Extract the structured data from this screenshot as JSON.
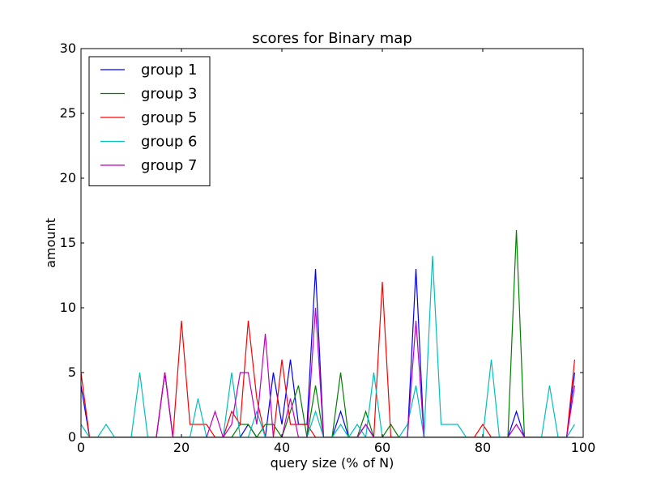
{
  "chart_data": {
    "type": "line",
    "title": "scores for Binary map",
    "xlabel": "query size (% of N)",
    "ylabel": "amount",
    "xlim": [
      0,
      100
    ],
    "ylim": [
      0,
      30
    ],
    "xticks": [
      0,
      20,
      40,
      60,
      80,
      100
    ],
    "yticks": [
      0,
      5,
      10,
      15,
      20,
      25,
      30
    ],
    "grid": false,
    "legend_position": "top-left",
    "series": [
      {
        "name": "group 1",
        "color": "#0000ff",
        "x": [
          0,
          1.7,
          3.3,
          5,
          6.7,
          8.3,
          10,
          11.7,
          13.3,
          15,
          16.7,
          18.3,
          20,
          21.7,
          23.3,
          25,
          26.7,
          28.3,
          30,
          31.7,
          33.3,
          35,
          36.7,
          38.3,
          40,
          41.7,
          43.3,
          45,
          46.7,
          48.3,
          50,
          51.7,
          53.3,
          55,
          56.7,
          58.3,
          60,
          61.7,
          63.3,
          65,
          66.7,
          68.3,
          70,
          71.7,
          73.3,
          75,
          76.7,
          78.3,
          80,
          81.7,
          83.3,
          85,
          86.7,
          88.3,
          90,
          91.7,
          93.3,
          95,
          96.7,
          98.3
        ],
        "values": [
          4,
          0,
          0,
          0,
          0,
          0,
          0,
          0,
          0,
          0,
          5,
          0,
          0,
          0,
          0,
          0,
          0,
          0,
          0,
          0,
          1,
          0,
          0,
          5,
          1,
          6,
          1,
          1,
          13,
          0,
          0,
          2,
          0,
          0,
          1,
          0,
          0,
          0,
          0,
          0,
          13,
          0,
          0,
          0,
          0,
          0,
          0,
          0,
          0,
          0,
          0,
          0,
          2,
          0,
          0,
          0,
          0,
          0,
          0,
          5
        ]
      },
      {
        "name": "group 3",
        "color": "#008000",
        "x": [
          0,
          1.7,
          3.3,
          5,
          6.7,
          8.3,
          10,
          11.7,
          13.3,
          15,
          16.7,
          18.3,
          20,
          21.7,
          23.3,
          25,
          26.7,
          28.3,
          30,
          31.7,
          33.3,
          35,
          36.7,
          38.3,
          40,
          41.7,
          43.3,
          45,
          46.7,
          48.3,
          50,
          51.7,
          53.3,
          55,
          56.7,
          58.3,
          60,
          61.7,
          63.3,
          65,
          66.7,
          68.3,
          70,
          71.7,
          73.3,
          75,
          76.7,
          78.3,
          80,
          81.7,
          83.3,
          85,
          86.7,
          88.3,
          90,
          91.7,
          93.3,
          95,
          96.7,
          98.3
        ],
        "values": [
          0,
          0,
          0,
          0,
          0,
          0,
          0,
          0,
          0,
          0,
          0,
          0,
          0,
          0,
          0,
          0,
          0,
          0,
          0,
          1,
          1,
          0,
          1,
          1,
          0,
          2,
          4,
          0,
          4,
          0,
          0,
          5,
          0,
          0,
          2,
          0,
          0,
          1,
          0,
          0,
          0,
          0,
          0,
          0,
          0,
          0,
          0,
          0,
          0,
          0,
          0,
          0,
          16,
          0,
          0,
          0,
          0,
          0,
          0,
          0
        ]
      },
      {
        "name": "group 5",
        "color": "#ff0000",
        "x": [
          0,
          1.7,
          3.3,
          5,
          6.7,
          8.3,
          10,
          11.7,
          13.3,
          15,
          16.7,
          18.3,
          20,
          21.7,
          23.3,
          25,
          26.7,
          28.3,
          30,
          31.7,
          33.3,
          35,
          36.7,
          38.3,
          40,
          41.7,
          43.3,
          45,
          46.7,
          48.3,
          50,
          51.7,
          53.3,
          55,
          56.7,
          58.3,
          60,
          61.7,
          63.3,
          65,
          66.7,
          68.3,
          70,
          71.7,
          73.3,
          75,
          76.7,
          78.3,
          80,
          81.7,
          83.3,
          85,
          86.7,
          88.3,
          90,
          91.7,
          93.3,
          95,
          96.7,
          98.3
        ],
        "values": [
          5,
          0,
          0,
          0,
          0,
          0,
          0,
          0,
          0,
          0,
          5,
          0,
          9,
          1,
          1,
          1,
          0,
          0,
          2,
          1,
          9,
          3,
          0,
          0,
          6,
          1,
          1,
          1,
          0,
          0,
          0,
          0,
          0,
          0,
          0,
          0,
          12,
          0,
          0,
          0,
          0,
          0,
          0,
          0,
          0,
          0,
          0,
          0,
          1,
          0,
          0,
          0,
          0,
          0,
          0,
          0,
          0,
          0,
          0,
          6
        ]
      },
      {
        "name": "group 6",
        "color": "#00bfbf",
        "x": [
          0,
          1.7,
          3.3,
          5,
          6.7,
          8.3,
          10,
          11.7,
          13.3,
          15,
          16.7,
          18.3,
          20,
          21.7,
          23.3,
          25,
          26.7,
          28.3,
          30,
          31.7,
          33.3,
          35,
          36.7,
          38.3,
          40,
          41.7,
          43.3,
          45,
          46.7,
          48.3,
          50,
          51.7,
          53.3,
          55,
          56.7,
          58.3,
          60,
          61.7,
          63.3,
          65,
          66.7,
          68.3,
          70,
          71.7,
          73.3,
          75,
          76.7,
          78.3,
          80,
          81.7,
          83.3,
          85,
          86.7,
          88.3,
          90,
          91.7,
          93.3,
          95,
          96.7,
          98.3
        ],
        "values": [
          1,
          0,
          0,
          1,
          0,
          0,
          0,
          5,
          0,
          0,
          0,
          0,
          0,
          0,
          3,
          0,
          0,
          0,
          5,
          0,
          0,
          2,
          0,
          0,
          0,
          0,
          0,
          0,
          2,
          0,
          0,
          1,
          0,
          1,
          0,
          5,
          0,
          0,
          0,
          1,
          4,
          0,
          14,
          1,
          1,
          1,
          0,
          0,
          0,
          6,
          0,
          0,
          0,
          0,
          0,
          0,
          4,
          0,
          0,
          1
        ]
      },
      {
        "name": "group 7",
        "color": "#bf00bf",
        "x": [
          0,
          1.7,
          3.3,
          5,
          6.7,
          8.3,
          10,
          11.7,
          13.3,
          15,
          16.7,
          18.3,
          20,
          21.7,
          23.3,
          25,
          26.7,
          28.3,
          30,
          31.7,
          33.3,
          35,
          36.7,
          38.3,
          40,
          41.7,
          43.3,
          45,
          46.7,
          48.3,
          50,
          51.7,
          53.3,
          55,
          56.7,
          58.3,
          60,
          61.7,
          63.3,
          65,
          66.7,
          68.3,
          70,
          71.7,
          73.3,
          75,
          76.7,
          78.3,
          80,
          81.7,
          83.3,
          85,
          86.7,
          88.3,
          90,
          91.7,
          93.3,
          95,
          96.7,
          98.3
        ],
        "values": [
          0,
          0,
          0,
          0,
          0,
          0,
          0,
          0,
          0,
          0,
          5,
          0,
          0,
          0,
          0,
          0,
          2,
          0,
          1,
          5,
          5,
          1,
          8,
          0,
          0,
          3,
          0,
          0,
          10,
          0,
          0,
          0,
          0,
          0,
          1,
          0,
          0,
          0,
          0,
          0,
          9,
          0,
          0,
          0,
          0,
          0,
          0,
          0,
          0,
          0,
          0,
          0,
          1,
          0,
          0,
          0,
          0,
          0,
          0,
          4
        ]
      }
    ]
  }
}
